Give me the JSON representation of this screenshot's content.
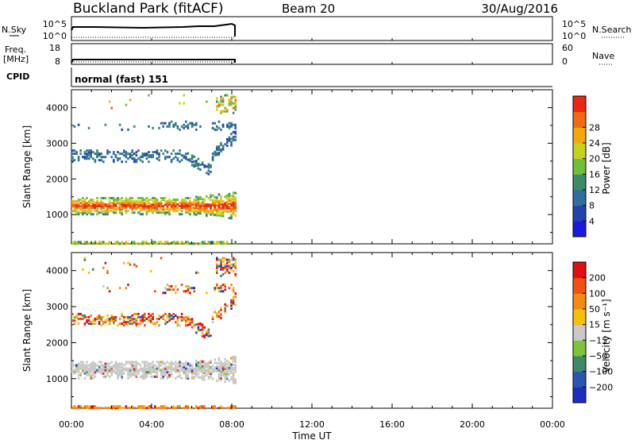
{
  "header": {
    "site": "Buckland Park (fitACF)",
    "beam": "Beam 20",
    "date": "30/Aug/2016"
  },
  "strips": {
    "nsky_label": "N.Sky",
    "nsky_ticks": [
      "10^5",
      "10^0"
    ],
    "nsearch_label": "N.Search",
    "freq_label_line1": "Freq.",
    "freq_label_line2": "[MHz]",
    "freq_ticks": [
      "18",
      "8"
    ],
    "nave_ticks": [
      "60",
      "0"
    ],
    "nave_label": "Nave",
    "cpid_label": "CPID",
    "cpid_text": "normal (fast) 151"
  },
  "chart_data": [
    {
      "type": "heatmap",
      "name": "power",
      "ylabel": "Slant Range [km]",
      "xlabel": "Time UT",
      "x_ticks": [
        "00:00",
        "04:00",
        "08:00",
        "12:00",
        "16:00",
        "20:00",
        "00:00"
      ],
      "xlim_hours": [
        0,
        24
      ],
      "ylim_km": [
        180,
        4500
      ],
      "y_ticks": [
        1000,
        2000,
        3000,
        4000
      ],
      "data_end_hour": 8.25,
      "colorbar": {
        "label": "Power [dB]",
        "ticks": [
          "4",
          "8",
          "12",
          "16",
          "20",
          "24",
          "28"
        ],
        "colors": [
          "#1a1adf",
          "#2244aa",
          "#2f6e9e",
          "#3b8a6a",
          "#6fbf3a",
          "#c9d11e",
          "#f5a60c",
          "#f06a10",
          "#e82810"
        ]
      }
    },
    {
      "type": "heatmap",
      "name": "velocity",
      "ylabel": "Slant Range [km]",
      "xlabel": "Time UT",
      "x_ticks": [
        "00:00",
        "04:00",
        "08:00",
        "12:00",
        "16:00",
        "20:00",
        "00:00"
      ],
      "xlim_hours": [
        0,
        24
      ],
      "ylim_km": [
        180,
        4500
      ],
      "y_ticks": [
        1000,
        2000,
        3000,
        4000
      ],
      "data_end_hour": 8.25,
      "colorbar": {
        "label": "Velocity [m s⁻¹]",
        "ticks": [
          "200",
          "100",
          "50",
          "15",
          "−15",
          "−50",
          "−100",
          "−200"
        ],
        "colors": [
          "#1a2fbf",
          "#2a56b0",
          "#3c8a6a",
          "#7cc43a",
          "#c8c8c8",
          "#f5c00c",
          "#f58a10",
          "#f05010",
          "#e01010"
        ]
      }
    }
  ]
}
